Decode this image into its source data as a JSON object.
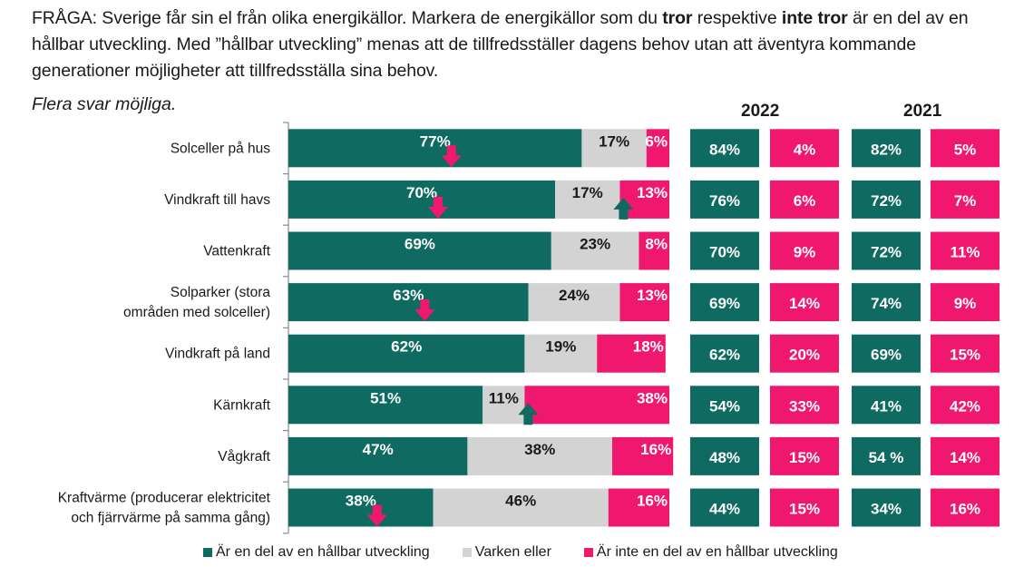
{
  "question": {
    "part1": "FRÅGA: Sverige får sin el från olika energikällor. Markera de energikällor som du ",
    "bold1": "tror",
    "part2": " respektive ",
    "bold2": "inte tror",
    "part3": " är en del av en hållbar utveckling. Med ”hållbar utveckling” menas att de tillfredsställer dagens behov utan att äventyra kommande generationer möjligheter att tillfredsställa sina behov."
  },
  "note": "Flera svar möjliga.",
  "colors": {
    "teal": "#0f6b61",
    "grey": "#d3d3d3",
    "pink": "#f0186e",
    "axis": "#8c8c8c"
  },
  "legend": [
    {
      "label": "Är en del av en hållbar utveckling",
      "color": "#0f6b61"
    },
    {
      "label": "Varken eller",
      "color": "#d3d3d3"
    },
    {
      "label": "Är inte en del av en hållbar utveckling",
      "color": "#f0186e"
    }
  ],
  "chart_data": {
    "type": "bar",
    "stacked": true,
    "orientation": "horizontal",
    "unit": "%",
    "categories": [
      [
        "Solceller på hus"
      ],
      [
        "Vindkraft till havs"
      ],
      [
        "Vattenkraft"
      ],
      [
        "Solparker (stora",
        "områden med solceller)"
      ],
      [
        "Vindkraft på land"
      ],
      [
        "Kärnkraft"
      ],
      [
        "Vågkraft"
      ],
      [
        "Kraftvärme (producerar elektricitet",
        "och fjärrvärme på samma gång)"
      ]
    ],
    "series": [
      {
        "name": "Är en del av en hållbar utveckling",
        "values": [
          77,
          70,
          69,
          63,
          62,
          51,
          47,
          38
        ],
        "color": "#0f6b61"
      },
      {
        "name": "Varken eller",
        "values": [
          17,
          17,
          23,
          24,
          19,
          11,
          38,
          46
        ],
        "color": "#d3d3d3"
      },
      {
        "name": "Är inte en del av en hållbar utveckling",
        "values": [
          6,
          13,
          8,
          13,
          18,
          38,
          16,
          16
        ],
        "color": "#f0186e"
      }
    ],
    "change_arrows": [
      {
        "category_index": 0,
        "series_index": 0,
        "direction": "down",
        "color": "#f0186e"
      },
      {
        "category_index": 1,
        "series_index": 0,
        "direction": "down",
        "color": "#f0186e"
      },
      {
        "category_index": 1,
        "series_index": 2,
        "direction": "up",
        "color": "#0f6b61"
      },
      {
        "category_index": 3,
        "series_index": 0,
        "direction": "down",
        "color": "#f0186e"
      },
      {
        "category_index": 5,
        "series_index": 2,
        "direction": "up",
        "color": "#0f6b61"
      },
      {
        "category_index": 7,
        "series_index": 0,
        "direction": "down",
        "color": "#f0186e"
      }
    ],
    "comparison": [
      {
        "year": "2022",
        "tror": [
          "84%",
          "76%",
          "70%",
          "69%",
          "62%",
          "54%",
          "48%",
          "44%"
        ],
        "inte_tror": [
          "4%",
          "6%",
          "9%",
          "14%",
          "20%",
          "33%",
          "15%",
          "15%"
        ]
      },
      {
        "year": "2021",
        "tror": [
          "82%",
          "72%",
          "72%",
          "74%",
          "69%",
          "41%",
          "54 %",
          "34%"
        ],
        "inte_tror": [
          "5%",
          "7%",
          "11%",
          "9%",
          "15%",
          "42%",
          "14%",
          "16%"
        ]
      }
    ],
    "xlim": [
      0,
      100
    ],
    "legend_position": "bottom"
  }
}
